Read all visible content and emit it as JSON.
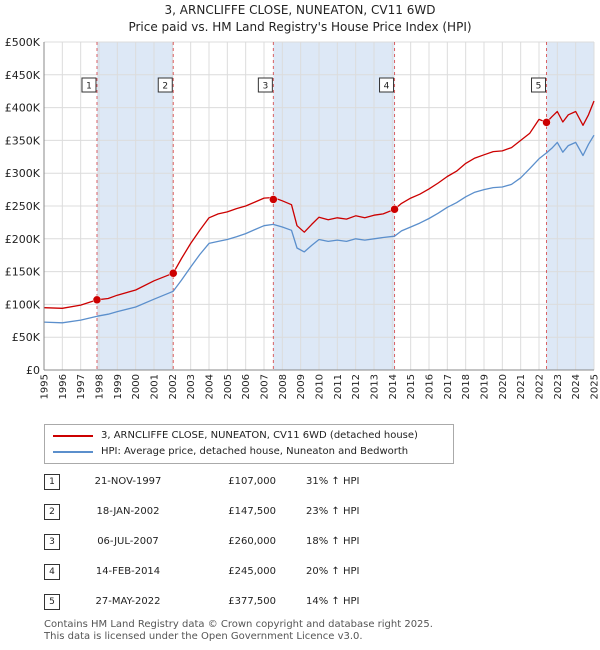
{
  "header": {
    "line1": "3, ARNCLIFFE CLOSE, NUNEATON, CV11 6WD",
    "line2": "Price paid vs. HM Land Registry's House Price Index (HPI)"
  },
  "legend": [
    {
      "label": "3, ARNCLIFFE CLOSE, NUNEATON, CV11 6WD (detached house)",
      "color": "#cc0000"
    },
    {
      "label": "HPI: Average price, detached house, Nuneaton and Bedworth",
      "color": "#5b8fcc"
    }
  ],
  "transactions": [
    {
      "num": "1",
      "date": "21-NOV-1997",
      "price": "£107,000",
      "hpi": "31% ↑ HPI"
    },
    {
      "num": "2",
      "date": "18-JAN-2002",
      "price": "£147,500",
      "hpi": "23% ↑ HPI"
    },
    {
      "num": "3",
      "date": "06-JUL-2007",
      "price": "£260,000",
      "hpi": "18% ↑ HPI"
    },
    {
      "num": "4",
      "date": "14-FEB-2014",
      "price": "£245,000",
      "hpi": "20% ↑ HPI"
    },
    {
      "num": "5",
      "date": "27-MAY-2022",
      "price": "£377,500",
      "hpi": "14% ↑ HPI"
    }
  ],
  "footer": {
    "line1": "Contains HM Land Registry data © Crown copyright and database right 2025.",
    "line2": "This data is licensed under the Open Government Licence v3.0."
  },
  "chart_data": {
    "type": "line",
    "ylim": [
      0,
      500000
    ],
    "xlim": [
      1995,
      2025
    ],
    "y_ticks": [
      0,
      50000,
      100000,
      150000,
      200000,
      250000,
      300000,
      350000,
      400000,
      450000,
      500000
    ],
    "y_tick_labels": [
      "£0",
      "£50K",
      "£100K",
      "£150K",
      "£200K",
      "£250K",
      "£300K",
      "£350K",
      "£400K",
      "£450K",
      "£500K"
    ],
    "x_ticks": [
      1995,
      1996,
      1997,
      1998,
      1999,
      2000,
      2001,
      2002,
      2003,
      2004,
      2005,
      2006,
      2007,
      2008,
      2009,
      2010,
      2011,
      2012,
      2013,
      2014,
      2015,
      2016,
      2017,
      2018,
      2019,
      2020,
      2021,
      2022,
      2023,
      2024,
      2025
    ],
    "x_tick_labels": [
      "1995",
      "1996",
      "1997",
      "1998",
      "1999",
      "2000",
      "2001",
      "2002",
      "2003",
      "2004",
      "2005",
      "2006",
      "2007",
      "2008",
      "2009",
      "2010",
      "2011",
      "2012",
      "2013",
      "2014",
      "2015",
      "2016",
      "2017",
      "2018",
      "2019",
      "2020",
      "2021",
      "2022",
      "2023",
      "2024",
      "2025"
    ],
    "grid": true,
    "series": [
      {
        "name": "3, ARNCLIFFE CLOSE, NUNEATON, CV11 6WD (detached house)",
        "color": "#cc0000",
        "x": [
          1995,
          1996,
          1997,
          1997.9,
          1998.5,
          1999,
          2000,
          2001,
          2002.05,
          2002.5,
          2003,
          2003.5,
          2004,
          2004.5,
          2005,
          2005.5,
          2006,
          2006.5,
          2007,
          2007.5,
          2008,
          2008.5,
          2008.8,
          2009.2,
          2009.6,
          2010,
          2010.5,
          2011,
          2011.5,
          2012,
          2012.5,
          2013,
          2013.5,
          2014.12,
          2014.5,
          2015,
          2015.5,
          2016,
          2016.5,
          2017,
          2017.5,
          2018,
          2018.5,
          2019,
          2019.5,
          2020,
          2020.5,
          2021,
          2021.5,
          2022,
          2022.41,
          2022.7,
          2023,
          2023.3,
          2023.6,
          2024,
          2024.4,
          2024.7,
          2025
        ],
        "y": [
          95000,
          94000,
          99000,
          107000,
          109000,
          114000,
          122000,
          136000,
          147500,
          170000,
          193000,
          213000,
          232000,
          238000,
          241000,
          246000,
          250000,
          256000,
          262000,
          263000,
          258000,
          252000,
          220000,
          210000,
          222000,
          233000,
          229000,
          232000,
          230000,
          235000,
          232000,
          236000,
          238000,
          245000,
          254000,
          262000,
          268000,
          276000,
          285000,
          295000,
          303000,
          315000,
          323000,
          328000,
          333000,
          334000,
          339000,
          350000,
          361000,
          382000,
          377500,
          386000,
          394000,
          378000,
          389000,
          394000,
          373000,
          389000,
          410000
        ]
      },
      {
        "name": "HPI: Average price, detached house, Nuneaton and Bedworth",
        "color": "#5b8fcc",
        "x": [
          1995,
          1996,
          1997,
          1997.9,
          1998.5,
          1999,
          2000,
          2001,
          2002.05,
          2002.5,
          2003,
          2003.5,
          2004,
          2004.5,
          2005,
          2005.5,
          2006,
          2006.5,
          2007,
          2007.5,
          2008,
          2008.5,
          2008.8,
          2009.2,
          2009.6,
          2010,
          2010.5,
          2011,
          2011.5,
          2012,
          2012.5,
          2013,
          2013.5,
          2014.12,
          2014.5,
          2015,
          2015.5,
          2016,
          2016.5,
          2017,
          2017.5,
          2018,
          2018.5,
          2019,
          2019.5,
          2020,
          2020.5,
          2021,
          2021.5,
          2022,
          2022.41,
          2022.7,
          2023,
          2023.3,
          2023.6,
          2024,
          2024.4,
          2024.7,
          2025
        ],
        "y": [
          73000,
          72000,
          76000,
          82000,
          85000,
          89000,
          96000,
          108000,
          120000,
          137000,
          157000,
          176000,
          193000,
          196000,
          199000,
          203000,
          208000,
          214000,
          220000,
          222000,
          218000,
          213000,
          186000,
          180000,
          190000,
          199000,
          196000,
          198000,
          196000,
          200000,
          198000,
          200000,
          202000,
          204000,
          212000,
          218000,
          224000,
          231000,
          239000,
          248000,
          255000,
          264000,
          271000,
          275000,
          278000,
          279000,
          283000,
          293000,
          307000,
          322000,
          331000,
          338000,
          347000,
          332000,
          342000,
          347000,
          327000,
          344000,
          358000
        ]
      }
    ],
    "markers": [
      {
        "label": "1",
        "x": 1997.89,
        "y": 107000
      },
      {
        "label": "2",
        "x": 2002.05,
        "y": 147500
      },
      {
        "label": "3",
        "x": 2007.51,
        "y": 260000
      },
      {
        "label": "4",
        "x": 2014.12,
        "y": 245000
      },
      {
        "label": "5",
        "x": 2022.41,
        "y": 377500
      }
    ],
    "highlight_ranges": [
      [
        1997.89,
        2002.05
      ],
      [
        2007.51,
        2014.12
      ],
      [
        2022.41,
        2025
      ]
    ],
    "marker_color": "#cc0000",
    "highlight_color": "#dde8f6"
  }
}
